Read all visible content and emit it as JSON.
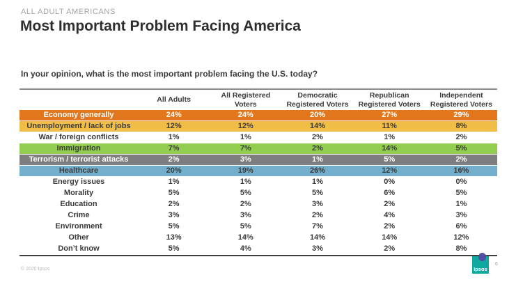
{
  "page": {
    "eyebrow": "ALL ADULT AMERICANS",
    "title": "Most Important Problem Facing America",
    "question": "In your opinion, what is the most important problem facing the U.S. today?",
    "copyright": "© 2020 Ipsos",
    "page_number": "6",
    "logo_text": "Ipsos"
  },
  "chart_data": {
    "type": "table",
    "title": "Most Important Problem Facing America",
    "question": "In your opinion, what is the most important problem facing the U.S. today?",
    "columns": [
      "All Adults",
      "All Registered Voters",
      "Democratic\nRegistered Voters",
      "Republican\nRegistered Voters",
      "Independent\nRegistered Voters"
    ],
    "rows": [
      {
        "label": "Economy generally",
        "values": [
          "24%",
          "24%",
          "20%",
          "27%",
          "29%"
        ],
        "color": "orange"
      },
      {
        "label": "Unemployment / lack of jobs",
        "values": [
          "12%",
          "12%",
          "14%",
          "11%",
          "8%"
        ],
        "color": "amber"
      },
      {
        "label": "War / foreign conflicts",
        "values": [
          "1%",
          "1%",
          "2%",
          "1%",
          "2%"
        ],
        "color": "none"
      },
      {
        "label": "Immigration",
        "values": [
          "7%",
          "7%",
          "2%",
          "14%",
          "5%"
        ],
        "color": "green"
      },
      {
        "label": "Terrorism / terrorist attacks",
        "values": [
          "2%",
          "3%",
          "1%",
          "5%",
          "2%"
        ],
        "color": "gray"
      },
      {
        "label": "Healthcare",
        "values": [
          "20%",
          "19%",
          "26%",
          "12%",
          "16%"
        ],
        "color": "blue"
      },
      {
        "label": "Energy issues",
        "values": [
          "1%",
          "1%",
          "1%",
          "0%",
          "0%"
        ],
        "color": "none"
      },
      {
        "label": "Morality",
        "values": [
          "5%",
          "5%",
          "5%",
          "6%",
          "5%"
        ],
        "color": "none"
      },
      {
        "label": "Education",
        "values": [
          "2%",
          "2%",
          "3%",
          "2%",
          "1%"
        ],
        "color": "none"
      },
      {
        "label": "Crime",
        "values": [
          "3%",
          "3%",
          "2%",
          "4%",
          "3%"
        ],
        "color": "none"
      },
      {
        "label": "Environment",
        "values": [
          "5%",
          "5%",
          "7%",
          "2%",
          "6%"
        ],
        "color": "none"
      },
      {
        "label": "Other",
        "values": [
          "13%",
          "14%",
          "14%",
          "14%",
          "12%"
        ],
        "color": "none"
      },
      {
        "label": "Don’t know",
        "values": [
          "5%",
          "4%",
          "3%",
          "2%",
          "8%"
        ],
        "color": "none"
      }
    ],
    "row_colors": {
      "orange": {
        "bg": "#e2771e",
        "text": "#ffffff"
      },
      "amber": {
        "bg": "#f0bd47",
        "text": "#3b3b3b"
      },
      "green": {
        "bg": "#92cd50",
        "text": "#3b3b3b"
      },
      "gray": {
        "bg": "#7e7e80",
        "text": "#ffffff"
      },
      "blue": {
        "bg": "#73afcb",
        "text": "#3b3b3b"
      },
      "none": {
        "bg": "transparent",
        "text": "#3b3b3b"
      }
    },
    "layout": {
      "grid": false,
      "header_rule_color": "#8c8c8c",
      "bottom_rule_color": "#3f3f3f"
    }
  }
}
